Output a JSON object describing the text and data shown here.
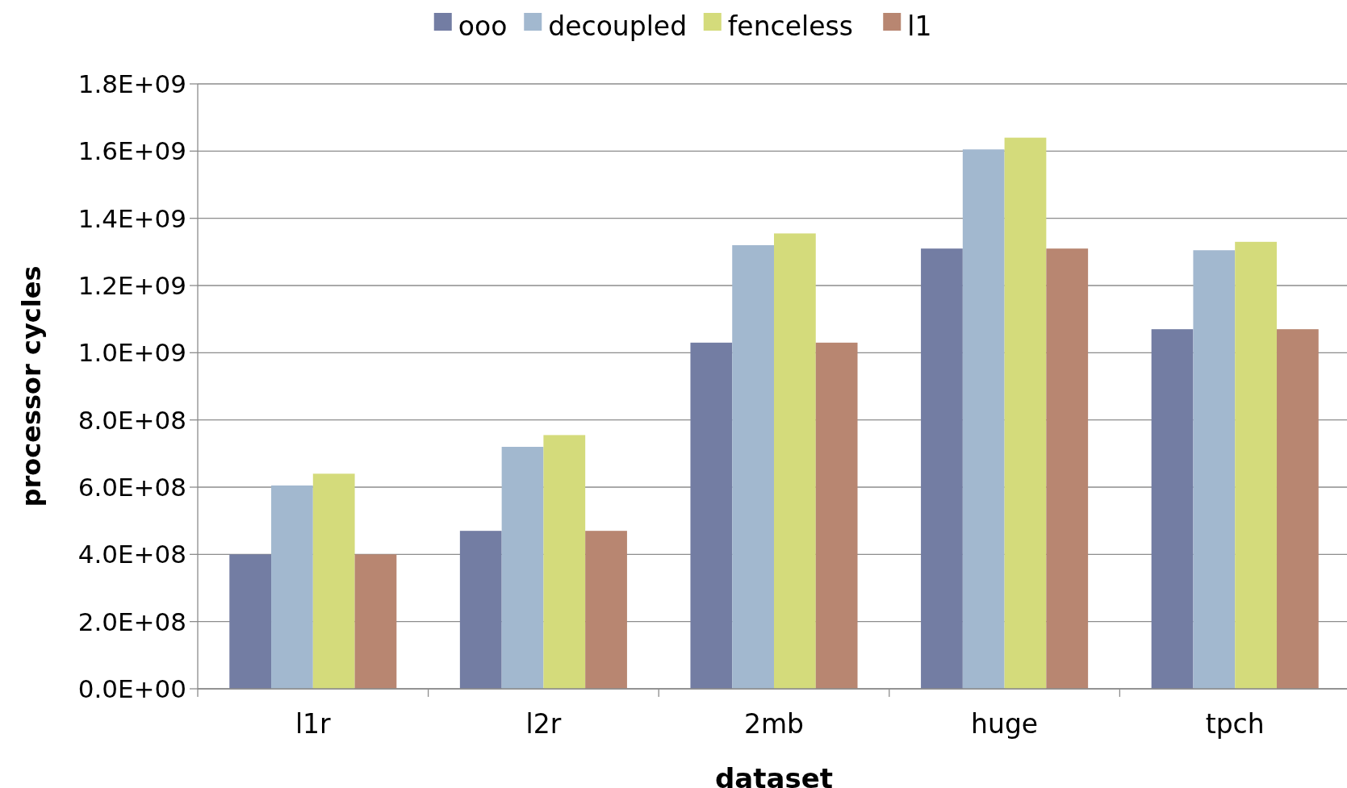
{
  "chart_data": {
    "type": "bar",
    "xlabel": "dataset",
    "ylabel": "processor cycles",
    "categories": [
      "l1r",
      "l2r",
      "2mb",
      "huge",
      "tpch"
    ],
    "series": [
      {
        "name": "ooo",
        "color": "#737da3",
        "values": [
          400000000.0,
          470000000.0,
          1030000000.0,
          1310000000.0,
          1070000000.0
        ]
      },
      {
        "name": "decoupled",
        "color": "#a2b8cf",
        "values": [
          605000000.0,
          720000000.0,
          1320000000.0,
          1605000000.0,
          1305000000.0
        ]
      },
      {
        "name": "fenceless",
        "color": "#d4db7b",
        "values": [
          640000000.0,
          755000000.0,
          1355000000.0,
          1640000000.0,
          1330000000.0
        ]
      },
      {
        "name": "l1",
        "color": "#b88671",
        "values": [
          400000000.0,
          470000000.0,
          1030000000.0,
          1310000000.0,
          1070000000.0
        ]
      }
    ],
    "ylim": [
      0,
      1800000000.0
    ],
    "yticks": [
      {
        "value": 0,
        "label": "0.0E+00"
      },
      {
        "value": 200000000.0,
        "label": "2.0E+08"
      },
      {
        "value": 400000000.0,
        "label": "4.0E+08"
      },
      {
        "value": 600000000.0,
        "label": "6.0E+08"
      },
      {
        "value": 800000000.0,
        "label": "8.0E+08"
      },
      {
        "value": 1000000000.0,
        "label": "1.0E+09"
      },
      {
        "value": 1200000000.0,
        "label": "1.2E+09"
      },
      {
        "value": 1400000000.0,
        "label": "1.4E+09"
      },
      {
        "value": 1600000000.0,
        "label": "1.6E+09"
      },
      {
        "value": 1800000000.0,
        "label": "1.8E+09"
      }
    ],
    "grid": "y",
    "legend": "top"
  }
}
